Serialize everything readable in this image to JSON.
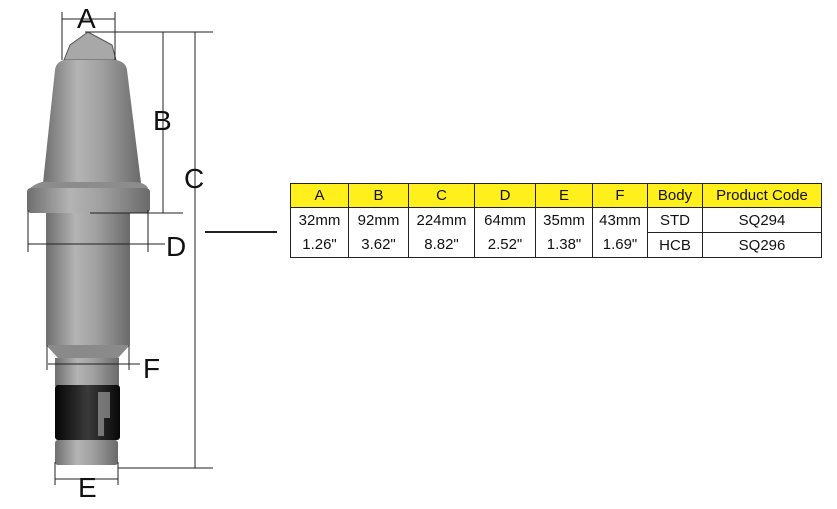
{
  "diagram": {
    "labels": {
      "a": "A",
      "b": "B",
      "c": "C",
      "d": "D",
      "e": "E",
      "f": "F"
    },
    "colors": {
      "body": "#9a9a9a",
      "sleeve": "#1a1a1a",
      "header": "#ffef1a"
    }
  },
  "table": {
    "headers": [
      "A",
      "B",
      "C",
      "D",
      "E",
      "F",
      "Body",
      "Product Code"
    ],
    "metric": [
      "32mm",
      "92mm",
      "224mm",
      "64mm",
      "35mm",
      "43mm"
    ],
    "imperial": [
      "1.26\"",
      "3.62\"",
      "8.82\"",
      "2.52\"",
      "1.38\"",
      "1.69\""
    ],
    "rows": [
      {
        "body": "STD",
        "code": "SQ294"
      },
      {
        "body": "HCB",
        "code": "SQ296"
      }
    ]
  }
}
